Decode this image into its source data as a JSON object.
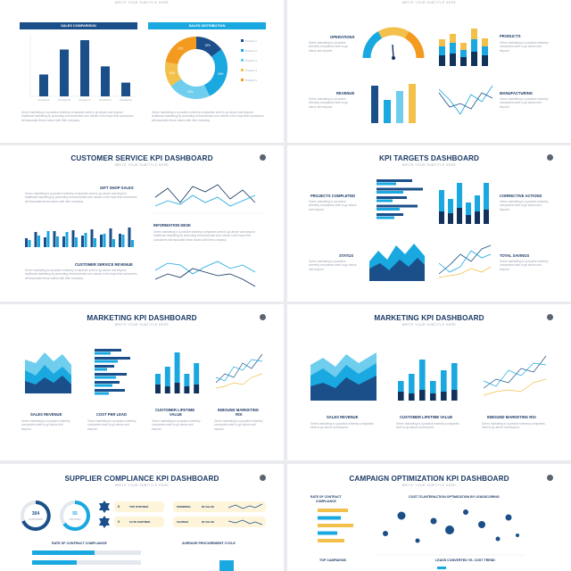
{
  "colors": {
    "navy": "#1b4f8a",
    "dark_navy": "#12325c",
    "cyan": "#19a8e0",
    "light_cyan": "#6fcdee",
    "yellow": "#f3c04b",
    "orange": "#f39a1f",
    "panel": "#fdf4d9"
  },
  "slide_sub": "WRITE YOUR SUBTITLE HERE",
  "desc_text": "Green marketing is a practice whereby companies seek to go above and beyond traditional marketing by promoting environmental core values in the hope that consumers will associate these values with their company.",
  "short_desc": "Green marketing is a practice whereby companies seek to go above and beyond.",
  "slide1": {
    "left_head": "SALES COMPARISON",
    "right_head": "SALES DISTRIBUTION",
    "bars": [
      35,
      75,
      90,
      48,
      22
    ],
    "bar_labels": [
      "Product A",
      "Product B",
      "Product C",
      "Product D",
      "Product E"
    ],
    "legend": [
      "Product 1",
      "Product 2",
      "Product 3",
      "Product 4",
      "Product 5"
    ],
    "donut_pcts": [
      "15%",
      "28%",
      "22%",
      "13%",
      "22%"
    ]
  },
  "slide2": {
    "labels": {
      "operations": "OPERATIONS",
      "products": "PRODUCTS",
      "revenue": "REVENUE",
      "manufacturing": "MANUFACTURING"
    }
  },
  "slide3": {
    "title": "CUSTOMER SERVICE KPI DASHBOARD",
    "labels": {
      "gift": "GIFT SHOP SALES",
      "info": "INFORMATION DESK",
      "revenue": "CUSTOMER SERVICE REVENUE"
    }
  },
  "slide4": {
    "title": "KPI TARGETS DASHBOARD",
    "labels": {
      "projects": "PROJECTS COMPLETED",
      "corrective": "CORRECTIVE ACTIONS",
      "status": "STATUS",
      "savings": "TOTAL SAVINGS"
    }
  },
  "slide5": {
    "title": "MARKETING KPI DASHBOARD",
    "labels": {
      "sales": "SALES REVENUE",
      "cpl": "COST PER LEAD",
      "clv1": "CUSTOMER LIFETIME",
      "clv2": "VALUE",
      "roi1": "INBOUND MARKETING",
      "roi2": "ROI"
    }
  },
  "slide6": {
    "title": "MARKETING KPI DASHBOARD",
    "labels": {
      "sales": "SALES REVENUE",
      "clv": "CUSTOMER LIFETIME VALUE",
      "roi": "INBOUND MARKETING ROI"
    }
  },
  "slide7": {
    "title": "SUPPLIER COMPLIANCE KPI DASHBOARD",
    "ring1_value": "304",
    "ring1_label": "SUPPLIERS",
    "ring2_value": "55",
    "ring2_label": "UPDATED",
    "badge1": "8",
    "badge2": "9",
    "row1": [
      "TOP PARTNER",
      "SPENDING",
      "$5 VALUE"
    ],
    "row2": [
      "CUTE PARTNER",
      "SAVINGS",
      "$5 VALUE"
    ],
    "bottom_left": "RATE OF CONTRACT COMPLIANCE",
    "bottom_right": "AVERAGE PROCUREMENT CYCLE"
  },
  "slide8": {
    "title": "CAMPAIGN OPTIMIZATION KPI DASHBOARD",
    "rate1": "RATE OF CONTRACT",
    "rate2": "COMPLIANCE",
    "bubble_title": "COST-TO-INTERACTION OPTIMIZATION BY LEADSCORING",
    "top_campaigns": "TOP CAMPAIGNS",
    "leads": "LEADS CONVERTED VS. COST TREND"
  }
}
